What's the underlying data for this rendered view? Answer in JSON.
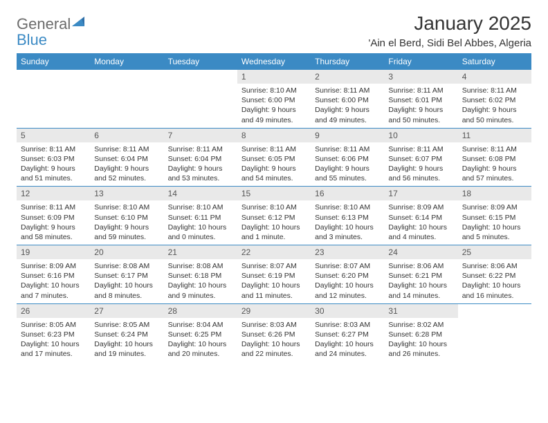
{
  "brand": {
    "part1": "General",
    "part2": "Blue"
  },
  "title": "January 2025",
  "location": "'Ain el Berd, Sidi Bel Abbes, Algeria",
  "colors": {
    "header_blue": "#3b8ac4",
    "day_num_bg": "#e9e9e9",
    "text": "#333333",
    "logo_gray": "#6b6b6b"
  },
  "dayNames": [
    "Sunday",
    "Monday",
    "Tuesday",
    "Wednesday",
    "Thursday",
    "Friday",
    "Saturday"
  ],
  "weeks": [
    [
      null,
      null,
      null,
      {
        "n": "1",
        "sr": "8:10 AM",
        "ss": "6:00 PM",
        "dl": "9 hours and 49 minutes."
      },
      {
        "n": "2",
        "sr": "8:11 AM",
        "ss": "6:00 PM",
        "dl": "9 hours and 49 minutes."
      },
      {
        "n": "3",
        "sr": "8:11 AM",
        "ss": "6:01 PM",
        "dl": "9 hours and 50 minutes."
      },
      {
        "n": "4",
        "sr": "8:11 AM",
        "ss": "6:02 PM",
        "dl": "9 hours and 50 minutes."
      }
    ],
    [
      {
        "n": "5",
        "sr": "8:11 AM",
        "ss": "6:03 PM",
        "dl": "9 hours and 51 minutes."
      },
      {
        "n": "6",
        "sr": "8:11 AM",
        "ss": "6:04 PM",
        "dl": "9 hours and 52 minutes."
      },
      {
        "n": "7",
        "sr": "8:11 AM",
        "ss": "6:04 PM",
        "dl": "9 hours and 53 minutes."
      },
      {
        "n": "8",
        "sr": "8:11 AM",
        "ss": "6:05 PM",
        "dl": "9 hours and 54 minutes."
      },
      {
        "n": "9",
        "sr": "8:11 AM",
        "ss": "6:06 PM",
        "dl": "9 hours and 55 minutes."
      },
      {
        "n": "10",
        "sr": "8:11 AM",
        "ss": "6:07 PM",
        "dl": "9 hours and 56 minutes."
      },
      {
        "n": "11",
        "sr": "8:11 AM",
        "ss": "6:08 PM",
        "dl": "9 hours and 57 minutes."
      }
    ],
    [
      {
        "n": "12",
        "sr": "8:11 AM",
        "ss": "6:09 PM",
        "dl": "9 hours and 58 minutes."
      },
      {
        "n": "13",
        "sr": "8:10 AM",
        "ss": "6:10 PM",
        "dl": "9 hours and 59 minutes."
      },
      {
        "n": "14",
        "sr": "8:10 AM",
        "ss": "6:11 PM",
        "dl": "10 hours and 0 minutes."
      },
      {
        "n": "15",
        "sr": "8:10 AM",
        "ss": "6:12 PM",
        "dl": "10 hours and 1 minute."
      },
      {
        "n": "16",
        "sr": "8:10 AM",
        "ss": "6:13 PM",
        "dl": "10 hours and 3 minutes."
      },
      {
        "n": "17",
        "sr": "8:09 AM",
        "ss": "6:14 PM",
        "dl": "10 hours and 4 minutes."
      },
      {
        "n": "18",
        "sr": "8:09 AM",
        "ss": "6:15 PM",
        "dl": "10 hours and 5 minutes."
      }
    ],
    [
      {
        "n": "19",
        "sr": "8:09 AM",
        "ss": "6:16 PM",
        "dl": "10 hours and 7 minutes."
      },
      {
        "n": "20",
        "sr": "8:08 AM",
        "ss": "6:17 PM",
        "dl": "10 hours and 8 minutes."
      },
      {
        "n": "21",
        "sr": "8:08 AM",
        "ss": "6:18 PM",
        "dl": "10 hours and 9 minutes."
      },
      {
        "n": "22",
        "sr": "8:07 AM",
        "ss": "6:19 PM",
        "dl": "10 hours and 11 minutes."
      },
      {
        "n": "23",
        "sr": "8:07 AM",
        "ss": "6:20 PM",
        "dl": "10 hours and 12 minutes."
      },
      {
        "n": "24",
        "sr": "8:06 AM",
        "ss": "6:21 PM",
        "dl": "10 hours and 14 minutes."
      },
      {
        "n": "25",
        "sr": "8:06 AM",
        "ss": "6:22 PM",
        "dl": "10 hours and 16 minutes."
      }
    ],
    [
      {
        "n": "26",
        "sr": "8:05 AM",
        "ss": "6:23 PM",
        "dl": "10 hours and 17 minutes."
      },
      {
        "n": "27",
        "sr": "8:05 AM",
        "ss": "6:24 PM",
        "dl": "10 hours and 19 minutes."
      },
      {
        "n": "28",
        "sr": "8:04 AM",
        "ss": "6:25 PM",
        "dl": "10 hours and 20 minutes."
      },
      {
        "n": "29",
        "sr": "8:03 AM",
        "ss": "6:26 PM",
        "dl": "10 hours and 22 minutes."
      },
      {
        "n": "30",
        "sr": "8:03 AM",
        "ss": "6:27 PM",
        "dl": "10 hours and 24 minutes."
      },
      {
        "n": "31",
        "sr": "8:02 AM",
        "ss": "6:28 PM",
        "dl": "10 hours and 26 minutes."
      },
      null
    ]
  ],
  "labels": {
    "sunrise": "Sunrise: ",
    "sunset": "Sunset: ",
    "daylight": "Daylight: "
  }
}
